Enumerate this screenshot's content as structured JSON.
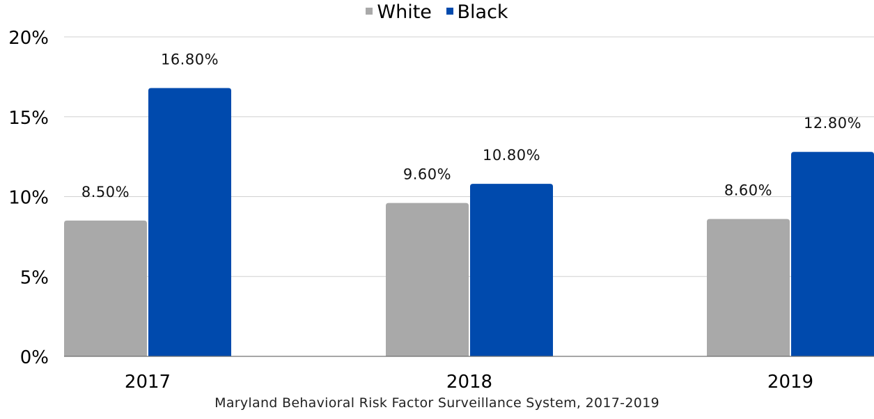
{
  "chart_data": {
    "type": "bar",
    "categories": [
      "2017",
      "2018",
      "2019"
    ],
    "series": [
      {
        "name": "White",
        "values": [
          8.5,
          9.6,
          8.6
        ],
        "labels": [
          "8.50%",
          "9.60%",
          "8.60%"
        ],
        "color": "#a9a9a9"
      },
      {
        "name": "Black",
        "values": [
          16.8,
          10.8,
          12.8
        ],
        "labels": [
          "16.80%",
          "10.80%",
          "12.80%"
        ],
        "color": "#004aad"
      }
    ],
    "ylim": [
      0,
      20
    ],
    "yticks": [
      0,
      5,
      10,
      15,
      20
    ],
    "ytick_labels": [
      "0%",
      "5%",
      "10%",
      "15%",
      "20%"
    ],
    "grid": true,
    "legend": "top-center",
    "source": "Maryland Behavioral Risk Factor Surveillance System, 2017-2019"
  }
}
